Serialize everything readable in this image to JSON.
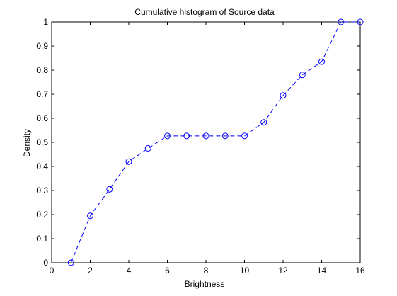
{
  "chart_data": {
    "type": "line",
    "title": "Cumulative histogram of Source data",
    "xlabel": "Brightness",
    "ylabel": "Density",
    "xlim": [
      0,
      16
    ],
    "ylim": [
      0,
      1
    ],
    "xticks": [
      0,
      2,
      4,
      6,
      8,
      10,
      12,
      14,
      16
    ],
    "yticks": [
      0,
      0.1,
      0.2,
      0.3,
      0.4,
      0.5,
      0.6,
      0.7,
      0.8,
      0.9,
      1
    ],
    "grid": false,
    "series": [
      {
        "x": [
          1,
          2,
          3,
          4,
          5,
          6,
          7,
          8,
          9,
          10,
          11,
          12,
          13,
          14,
          15,
          16
        ],
        "y": [
          0,
          0.195,
          0.305,
          0.42,
          0.475,
          0.527,
          0.527,
          0.527,
          0.527,
          0.527,
          0.583,
          0.695,
          0.78,
          0.835,
          1,
          1
        ],
        "marker": "circle",
        "line_style": "dashed",
        "color": "#0000ff"
      }
    ]
  }
}
